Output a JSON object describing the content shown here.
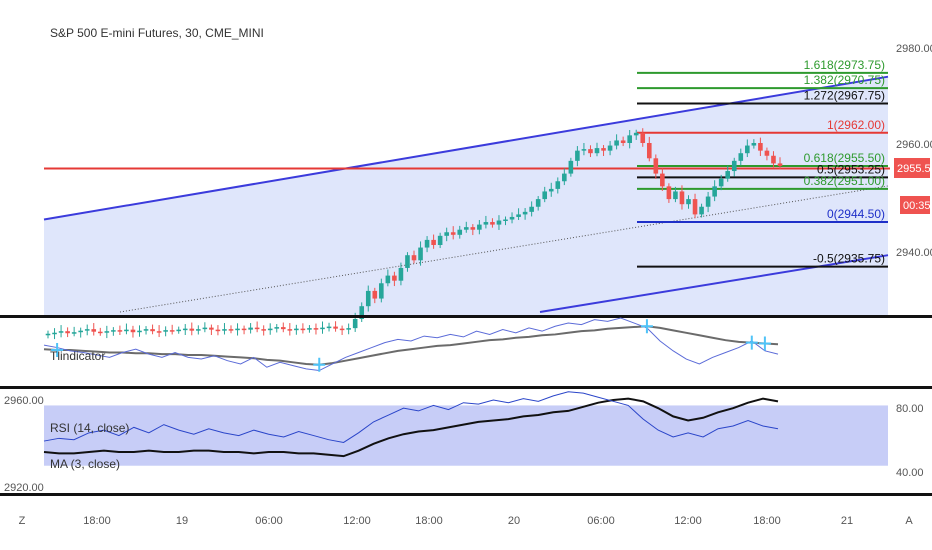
{
  "header": {
    "symbol_title": "S&P 500 E-mini Futures, 30, CME_MINI"
  },
  "colors": {
    "up": "#26a69a",
    "down": "#ef5350",
    "wick_down": "#ef5350",
    "channel": "#3b3bdc",
    "channel_fill": "#dfe6fb",
    "hline_red": "#e53935",
    "fib_green": "#2e9a2e",
    "fib_black": "#111111",
    "fib_red": "#e53935",
    "fib_blue": "#1e2fc8",
    "ind_gray": "#6b6b6b",
    "ind_blue": "#5b6bd8",
    "cross": "#4fc3f7",
    "rsi_band": "#c7cdf7",
    "ma_black": "#111111",
    "rsi_blue": "#2a45c9",
    "price_badge": "#ef5350",
    "axis_text": "#555555"
  },
  "price_axis": {
    "labels": [
      "2980.00",
      "2960.00",
      "2940.00"
    ],
    "current_price": "2955.50",
    "countdown": "00:35"
  },
  "fib_levels": [
    {
      "label": "1.618(2973.75)",
      "color": "green"
    },
    {
      "label": "1.382(2970.75)",
      "color": "green"
    },
    {
      "label": "1.272(2967.75)",
      "color": "black"
    },
    {
      "label": "1(2962.00)",
      "color": "red"
    },
    {
      "label": "0.618(2955.50)",
      "color": "green"
    },
    {
      "label": "0.5(2953.25)",
      "color": "black"
    },
    {
      "label": "0.382(2951.00)",
      "color": "green"
    },
    {
      "label": "0(2944.50)",
      "color": "blue"
    },
    {
      "label": "-0.5(2935.75)",
      "color": "black"
    }
  ],
  "indicator_pane": {
    "title": "Tlindicator"
  },
  "rsi_pane": {
    "rsi_label": "RSI (14, close)",
    "ma_label": "MA (3, close)",
    "left_labels": [
      "2960.00",
      "2920.00"
    ],
    "right_labels": [
      "80.00",
      "40.00"
    ]
  },
  "time_axis": {
    "labels": [
      "Z",
      "18:00",
      "19",
      "06:00",
      "12:00",
      "18:00",
      "20",
      "06:00",
      "12:00",
      "18:00",
      "21",
      "A"
    ]
  },
  "chart_data": {
    "type": "candlestick",
    "title": "S&P 500 E-mini Futures, 30, CME_MINI",
    "interval": "30",
    "ylim": [
      2922,
      2985
    ],
    "current_price": 2955.5,
    "candles_close": [
      2922.6,
      2922.8,
      2923.1,
      2922.7,
      2922.9,
      2923.2,
      2923.5,
      2923.0,
      2922.8,
      2923.1,
      2923.3,
      2923.1,
      2923.4,
      2922.9,
      2923.2,
      2923.5,
      2923.1,
      2923.0,
      2923.3,
      2923.2,
      2923.4,
      2923.6,
      2923.2,
      2923.5,
      2923.8,
      2923.4,
      2923.2,
      2923.5,
      2923.3,
      2923.6,
      2923.4,
      2923.8,
      2923.5,
      2923.3,
      2923.6,
      2923.9,
      2923.5,
      2923.3,
      2923.6,
      2923.4,
      2923.7,
      2923.5,
      2923.8,
      2924.0,
      2923.6,
      2923.4,
      2923.7,
      2925.5,
      2928.0,
      2931.0,
      2929.5,
      2932.5,
      2934.0,
      2933.0,
      2935.5,
      2938.0,
      2937.0,
      2939.5,
      2941.0,
      2940.0,
      2941.8,
      2942.5,
      2942.0,
      2943.0,
      2943.5,
      2943.0,
      2944.0,
      2944.5,
      2944.0,
      2944.8,
      2945.0,
      2945.5,
      2946.0,
      2946.5,
      2947.5,
      2949.0,
      2950.5,
      2951.0,
      2952.5,
      2954.0,
      2956.5,
      2958.5,
      2958.8,
      2958.0,
      2959.0,
      2958.5,
      2959.5,
      2960.5,
      2960.0,
      2961.5,
      2962.0,
      2960.0,
      2957.0,
      2954.0,
      2951.5,
      2949.0,
      2950.5,
      2948.0,
      2949.0,
      2946.0,
      2947.5,
      2949.5,
      2951.5,
      2953.0,
      2954.5,
      2956.5,
      2958.0,
      2959.5,
      2960.0,
      2958.5,
      2957.5,
      2956.0,
      2955.5
    ],
    "channel_upper": {
      "from": 2945.0,
      "to": 2973.0
    },
    "channel_lower": {
      "from": 2917.0,
      "to": 2938.0
    },
    "horizontal_line": 2955.0,
    "fib_retracement": [
      {
        "ratio": 1.618,
        "price": 2973.75
      },
      {
        "ratio": 1.382,
        "price": 2970.75
      },
      {
        "ratio": 1.272,
        "price": 2967.75
      },
      {
        "ratio": 1,
        "price": 2962.0
      },
      {
        "ratio": 0.618,
        "price": 2955.5
      },
      {
        "ratio": 0.5,
        "price": 2953.25
      },
      {
        "ratio": 0.382,
        "price": 2951.0
      },
      {
        "ratio": 0,
        "price": 2944.5
      },
      {
        "ratio": -0.5,
        "price": 2935.75
      }
    ],
    "indicator_gray": [
      40,
      39,
      39,
      38,
      37,
      36,
      36,
      35,
      35,
      34,
      34,
      33,
      33,
      32,
      31,
      30,
      29,
      27,
      26,
      24,
      22,
      21,
      23,
      26,
      29,
      32,
      35,
      38,
      40,
      42,
      44,
      45,
      47,
      49,
      51,
      52,
      54,
      55,
      57,
      58,
      60,
      62,
      63,
      65,
      66,
      67,
      68,
      66,
      63,
      60,
      57,
      54,
      51,
      49,
      48,
      47,
      46
    ],
    "indicator_blue": [
      45,
      42,
      38,
      36,
      33,
      30,
      36,
      40,
      34,
      30,
      36,
      30,
      28,
      32,
      26,
      22,
      30,
      18,
      24,
      20,
      16,
      14,
      22,
      30,
      36,
      42,
      48,
      52,
      50,
      56,
      54,
      58,
      55,
      62,
      58,
      64,
      60,
      66,
      62,
      68,
      72,
      70,
      76,
      74,
      78,
      72,
      66,
      50,
      38,
      28,
      22,
      30,
      36,
      42,
      50,
      38,
      34
    ],
    "rsi": [
      44,
      46,
      45,
      50,
      52,
      48,
      54,
      50,
      56,
      52,
      49,
      53,
      50,
      48,
      52,
      49,
      47,
      51,
      48,
      45,
      43,
      50,
      58,
      63,
      68,
      66,
      70,
      67,
      72,
      71,
      74,
      72,
      75,
      73,
      77,
      80,
      79,
      76,
      73,
      70,
      60,
      52,
      47,
      50,
      47,
      53,
      55,
      59,
      55,
      53
    ],
    "ma": [
      40,
      39,
      39,
      40,
      41,
      40,
      40,
      41,
      40,
      40,
      41,
      41,
      40,
      40,
      39,
      40,
      40,
      39,
      39,
      38,
      37,
      41,
      46,
      50,
      53,
      55,
      56,
      58,
      60,
      62,
      63,
      64,
      66,
      67,
      69,
      70,
      73,
      76,
      78,
      79,
      77,
      72,
      66,
      63,
      65,
      69,
      72,
      76,
      79,
      77
    ],
    "rsi_band": [
      40,
      70
    ]
  }
}
